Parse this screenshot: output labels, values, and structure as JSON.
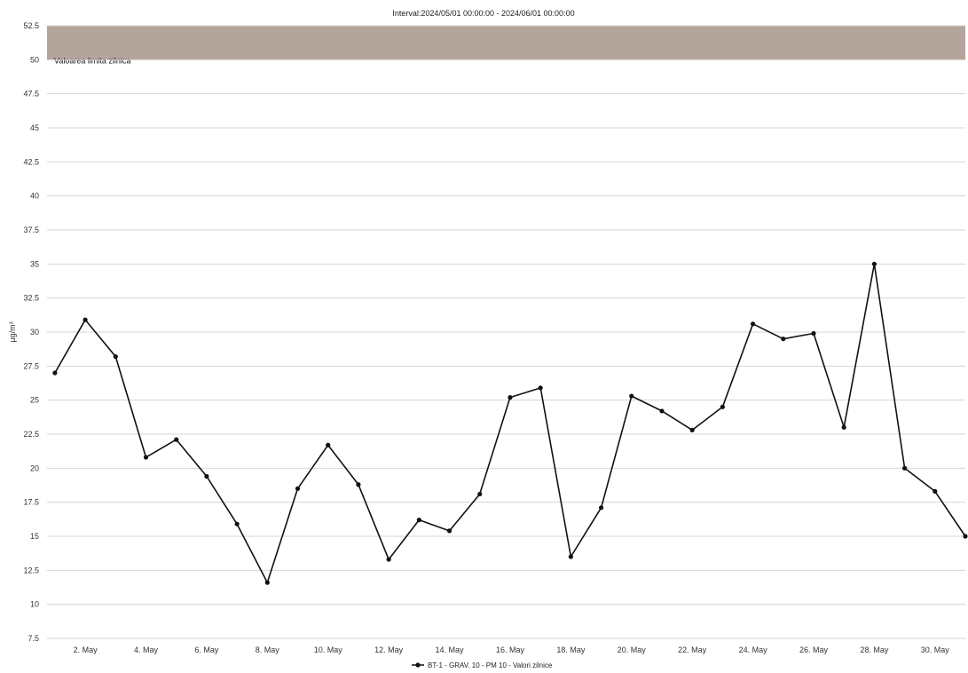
{
  "chart_data": {
    "type": "line",
    "title": "Interval:2024/05/01 00:00:00 - 2024/06/01 00:00:00",
    "ylabel": "µg/m³",
    "xlabel": "",
    "ylim": [
      7.5,
      52.5
    ],
    "y_ticks": [
      "52.5",
      "50",
      "47.5",
      "45",
      "42.5",
      "40",
      "37.5",
      "35",
      "32.5",
      "30",
      "27.5",
      "25",
      "22.5",
      "20",
      "17.5",
      "15",
      "12.5",
      "10",
      "7.5"
    ],
    "x_ticks": [
      {
        "day": 2,
        "label": "2. May"
      },
      {
        "day": 4,
        "label": "4. May"
      },
      {
        "day": 6,
        "label": "6. May"
      },
      {
        "day": 8,
        "label": "8. May"
      },
      {
        "day": 10,
        "label": "10. May"
      },
      {
        "day": 12,
        "label": "12. May"
      },
      {
        "day": 14,
        "label": "14. May"
      },
      {
        "day": 16,
        "label": "16. May"
      },
      {
        "day": 18,
        "label": "18. May"
      },
      {
        "day": 20,
        "label": "20. May"
      },
      {
        "day": 22,
        "label": "22. May"
      },
      {
        "day": 24,
        "label": "24. May"
      },
      {
        "day": 26,
        "label": "26. May"
      },
      {
        "day": 28,
        "label": "28. May"
      },
      {
        "day": 30,
        "label": "30. May"
      }
    ],
    "grid": true,
    "limit_band": {
      "from": 50,
      "to": 52.5,
      "label": "Valoarea limita zilnica",
      "color": "#b3a59b"
    },
    "legend": {
      "placement": "bottom-center"
    },
    "series": [
      {
        "name": "BT-1 - GRAV. 10 - PM 10 - Valori zilnice",
        "color": "#111111",
        "x": [
          1,
          2,
          3,
          4,
          5,
          6,
          7,
          8,
          9,
          10,
          11,
          12,
          13,
          14,
          15,
          16,
          17,
          18,
          19,
          20,
          21,
          22,
          23,
          24,
          25,
          26,
          27,
          28,
          29,
          30,
          31
        ],
        "values": [
          27.0,
          30.9,
          28.2,
          20.8,
          22.1,
          19.4,
          15.9,
          11.6,
          18.5,
          21.7,
          18.8,
          13.3,
          16.2,
          15.4,
          18.1,
          25.2,
          25.9,
          13.5,
          17.1,
          25.3,
          24.2,
          22.8,
          24.5,
          30.6,
          29.5,
          29.9,
          23.0,
          35.0,
          20.0,
          18.3,
          15.0
        ]
      }
    ]
  }
}
